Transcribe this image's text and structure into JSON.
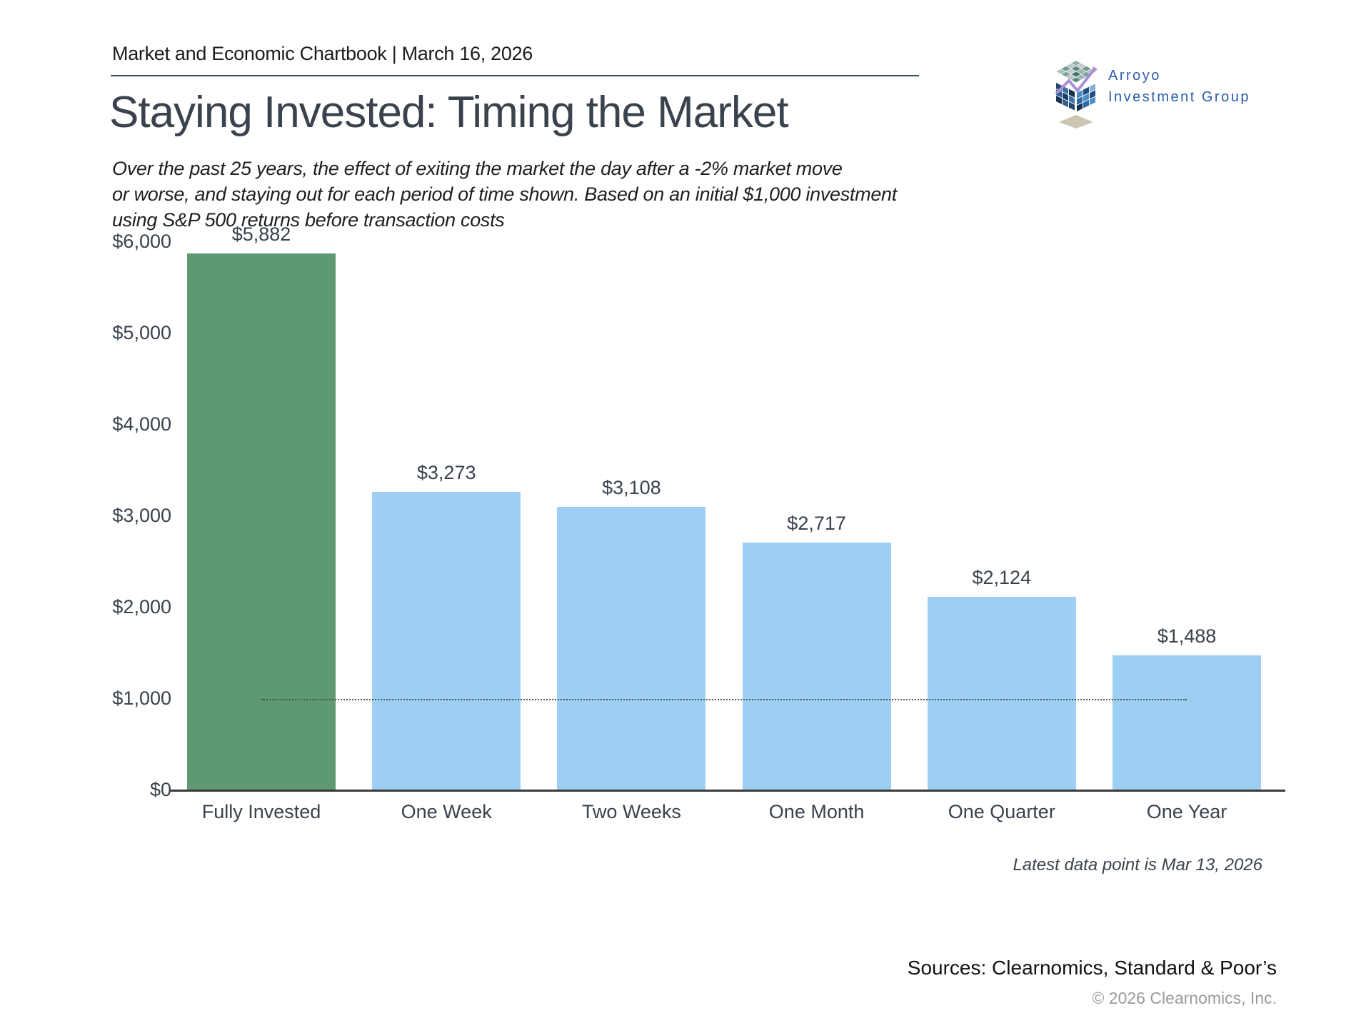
{
  "header": {
    "chartbook_label": "Market and Economic Chartbook | March 16, 2026",
    "logo": {
      "line1": "Arroyo",
      "line2": "Investment Group",
      "text_color": "#2A5DA8"
    }
  },
  "title": "Staying Invested: Timing the Market",
  "subtitle_lines": [
    "Over the past 25 years, the effect of exiting the market the day after a -2% market move",
    "or worse, and staying out for each period of time shown. Based on an initial $1,000 investment",
    "using S&P 500 returns before transaction costs"
  ],
  "chart_data": {
    "type": "bar",
    "title": "",
    "xlabel": "",
    "ylabel": "",
    "categories": [
      "Fully Invested",
      "One Week",
      "Two Weeks",
      "One Month",
      "One Quarter",
      "One Year"
    ],
    "values": [
      5882,
      3273,
      3108,
      2717,
      2124,
      1488
    ],
    "value_labels": [
      "$5,882",
      "$3,273",
      "$3,108",
      "$2,717",
      "$2,124",
      "$1,488"
    ],
    "y_ticks": [
      "$6,000",
      "$5,000",
      "$4,000",
      "$3,000",
      "$2,000",
      "$1,000",
      "$0"
    ],
    "ylim": [
      0,
      6000
    ],
    "grid": false,
    "legend": false,
    "reference_line_value": 1000,
    "highlight_index": 0,
    "colors": {
      "highlight_bar": "#5E9973",
      "default_bar": "#9CCFF3",
      "axis": "#3a3a3a",
      "reference_line": "#4d4d4d"
    }
  },
  "footnotes": {
    "latest_data": "Latest data point is Mar 13, 2026",
    "sources": "Sources: Clearnomics, Standard & Poor’s",
    "copyright": "© 2026 Clearnomics, Inc."
  }
}
